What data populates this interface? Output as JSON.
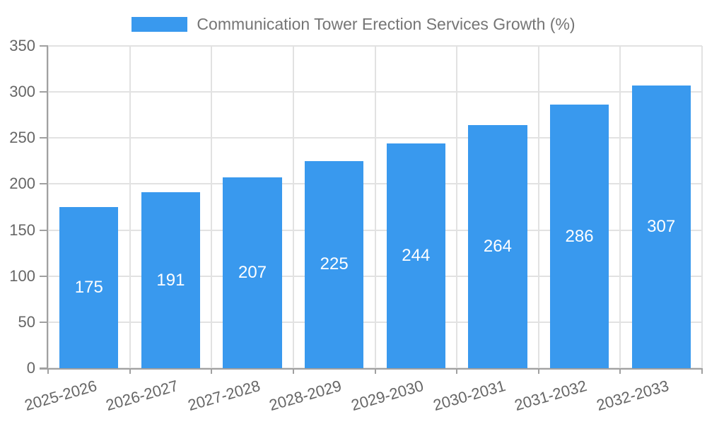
{
  "chart_data": {
    "type": "bar",
    "title": "Communication Tower Erection Services Growth (%)",
    "categories": [
      "2025-2026",
      "2026-2027",
      "2027-2028",
      "2028-2029",
      "2029-2030",
      "2030-2031",
      "2031-2032",
      "2032-2033"
    ],
    "values": [
      175,
      191,
      207,
      225,
      244,
      264,
      286,
      307
    ],
    "xlabel": "",
    "ylabel": "",
    "ylim": [
      0,
      350
    ],
    "ytick_step": 50,
    "ytick_labels": [
      "0",
      "50",
      "100",
      "150",
      "200",
      "250",
      "300",
      "350"
    ],
    "grid": true,
    "legend_position": "top",
    "value_label_position": "inside-center",
    "colors": {
      "bar": "#3999EE",
      "grid": "#e2e2e2",
      "axis": "#a0a0a0",
      "tick_text": "#666666",
      "legend_text": "#757575",
      "value_text": "#ffffff",
      "background": "#ffffff"
    }
  }
}
